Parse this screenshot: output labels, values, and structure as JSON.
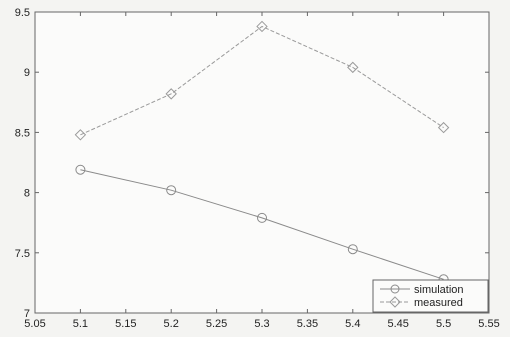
{
  "chart_data": {
    "type": "line",
    "title": "",
    "xlabel": "",
    "ylabel": "",
    "xlim": [
      5.05,
      5.55
    ],
    "ylim": [
      7,
      9.5
    ],
    "x_ticks": [
      "5.05",
      "5.1",
      "5.15",
      "5.2",
      "5.25",
      "5.3",
      "5.35",
      "5.4",
      "5.45",
      "5.5",
      "5.55"
    ],
    "y_ticks": [
      "7",
      "7.5",
      "8",
      "8.5",
      "9",
      "9.5"
    ],
    "grid": false,
    "legend_position": "bottom-right",
    "series": [
      {
        "name": "simulation",
        "marker": "circle",
        "color": "#8a8a8a",
        "line_style": "solid",
        "x": [
          5.1,
          5.2,
          5.3,
          5.4,
          5.5
        ],
        "y": [
          8.19,
          8.02,
          7.79,
          7.53,
          7.28
        ]
      },
      {
        "name": "measured",
        "marker": "diamond",
        "color": "#9a9a9a",
        "line_style": "dashed",
        "x": [
          5.1,
          5.2,
          5.3,
          5.4,
          5.5
        ],
        "y": [
          8.48,
          8.82,
          9.38,
          9.04,
          8.54
        ]
      }
    ]
  }
}
